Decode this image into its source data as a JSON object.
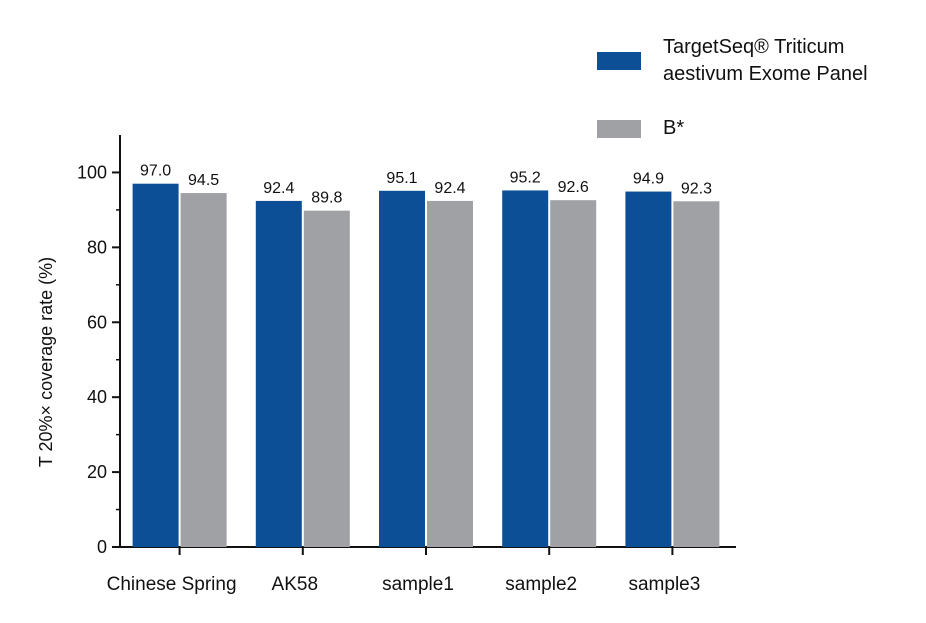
{
  "chart_data": {
    "type": "bar",
    "title": "",
    "xlabel": "",
    "ylabel": "T 20%× coverage rate (%)",
    "ylim": [
      0,
      110
    ],
    "yticks": [
      0,
      20,
      40,
      60,
      80,
      100
    ],
    "categories": [
      "Chinese Spring",
      "AK58",
      "sample1",
      "sample2",
      "sample3"
    ],
    "series": [
      {
        "name": "TargetSeq® Triticum\naestivum Exome Panel",
        "color": "#0d4f96",
        "values": [
          97.0,
          92.4,
          95.1,
          95.2,
          94.9
        ],
        "labels": [
          "97.0",
          "92.4",
          "95.1",
          "95.2",
          "94.9"
        ]
      },
      {
        "name": "B*",
        "color": "#a0a1a4",
        "values": [
          94.5,
          89.8,
          92.4,
          92.6,
          92.3
        ],
        "labels": [
          "94.5",
          "89.8",
          "92.4",
          "92.6",
          "92.3"
        ]
      }
    ],
    "grid": false,
    "legend_position": "top-right"
  }
}
